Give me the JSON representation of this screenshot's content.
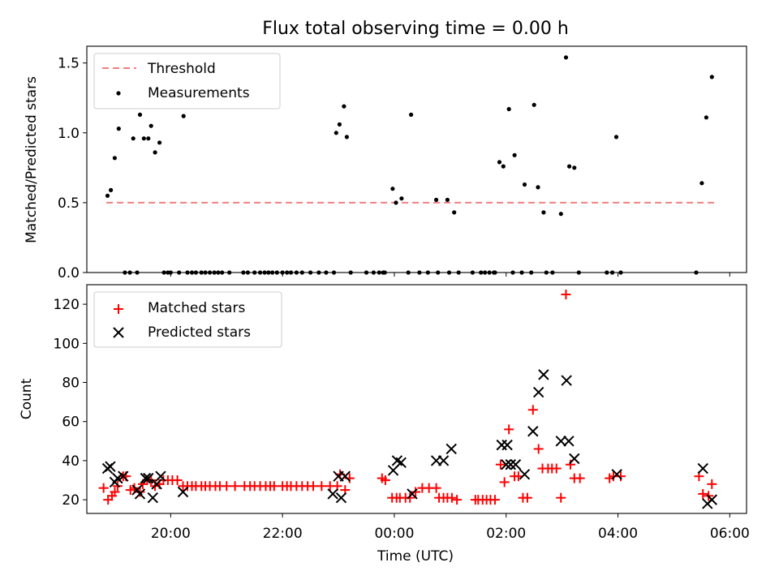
{
  "chart_data": [
    {
      "type": "scatter",
      "title": "Flux total observing time = 0.00 h",
      "xlabel": "",
      "ylabel": "Matched/Predicted stars",
      "xlim": [
        18.5,
        30.3
      ],
      "ylim": [
        0,
        1.62
      ],
      "yticks": [
        0,
        0.5,
        1.0,
        1.5
      ],
      "ytick_labels": [
        "0.0",
        "0.5",
        "1.0",
        "1.5"
      ],
      "legend": {
        "position": "top-left",
        "entries": [
          "Threshold",
          "Measurements"
        ]
      },
      "threshold": {
        "name": "Threshold",
        "value": 0.5,
        "x": [
          18.85,
          29.75
        ],
        "color": "#f08080"
      },
      "series": [
        {
          "name": "Measurements",
          "color": "#000000",
          "points": [
            [
              18.87,
              0.55
            ],
            [
              18.93,
              0.59
            ],
            [
              19.0,
              0.82
            ],
            [
              19.07,
              1.03
            ],
            [
              19.18,
              0.0
            ],
            [
              19.27,
              0.0
            ],
            [
              19.33,
              0.96
            ],
            [
              19.4,
              0.0
            ],
            [
              19.45,
              1.13
            ],
            [
              19.52,
              0.96
            ],
            [
              19.6,
              0.96
            ],
            [
              19.65,
              1.05
            ],
            [
              19.72,
              0.86
            ],
            [
              19.8,
              0.93
            ],
            [
              19.88,
              0.0
            ],
            [
              19.95,
              0.0
            ],
            [
              20.0,
              0.0
            ],
            [
              20.15,
              0.0
            ],
            [
              20.23,
              1.12
            ],
            [
              20.3,
              0.0
            ],
            [
              20.38,
              0.0
            ],
            [
              20.45,
              0.0
            ],
            [
              20.55,
              0.0
            ],
            [
              20.62,
              0.0
            ],
            [
              20.7,
              0.0
            ],
            [
              20.78,
              0.0
            ],
            [
              20.85,
              0.0
            ],
            [
              20.92,
              0.0
            ],
            [
              21.05,
              0.0
            ],
            [
              21.3,
              0.0
            ],
            [
              21.38,
              0.0
            ],
            [
              21.5,
              0.0
            ],
            [
              21.6,
              0.0
            ],
            [
              21.68,
              0.0
            ],
            [
              21.75,
              0.0
            ],
            [
              21.82,
              0.0
            ],
            [
              21.9,
              0.0
            ],
            [
              22.0,
              0.0
            ],
            [
              22.08,
              0.0
            ],
            [
              22.15,
              0.0
            ],
            [
              22.25,
              0.0
            ],
            [
              22.35,
              0.0
            ],
            [
              22.5,
              0.0
            ],
            [
              22.65,
              0.0
            ],
            [
              22.78,
              0.0
            ],
            [
              22.92,
              0.0
            ],
            [
              22.96,
              1.0
            ],
            [
              23.02,
              1.06
            ],
            [
              23.1,
              1.19
            ],
            [
              23.15,
              0.97
            ],
            [
              23.22,
              0.0
            ],
            [
              23.5,
              0.0
            ],
            [
              23.63,
              0.0
            ],
            [
              23.73,
              0.0
            ],
            [
              23.8,
              0.0
            ],
            [
              23.83,
              0.0
            ],
            [
              23.97,
              0.6
            ],
            [
              24.03,
              0.5
            ],
            [
              24.13,
              0.53
            ],
            [
              24.25,
              0.0
            ],
            [
              24.3,
              1.13
            ],
            [
              24.45,
              0.0
            ],
            [
              24.6,
              0.0
            ],
            [
              24.75,
              0.52
            ],
            [
              24.78,
              0.0
            ],
            [
              24.95,
              0.52
            ],
            [
              24.98,
              0.0
            ],
            [
              25.07,
              0.43
            ],
            [
              25.15,
              0.0
            ],
            [
              25.4,
              0.0
            ],
            [
              25.55,
              0.0
            ],
            [
              25.62,
              0.0
            ],
            [
              25.7,
              0.0
            ],
            [
              25.78,
              0.0
            ],
            [
              25.8,
              0.0
            ],
            [
              25.88,
              0.79
            ],
            [
              25.95,
              0.76
            ],
            [
              26.05,
              1.17
            ],
            [
              26.12,
              0.0
            ],
            [
              26.15,
              0.84
            ],
            [
              26.28,
              0.0
            ],
            [
              26.33,
              0.63
            ],
            [
              26.45,
              0.0
            ],
            [
              26.5,
              1.2
            ],
            [
              26.57,
              0.61
            ],
            [
              26.67,
              0.43
            ],
            [
              26.72,
              0.0
            ],
            [
              26.83,
              0.0
            ],
            [
              26.98,
              0.42
            ],
            [
              27.07,
              1.54
            ],
            [
              27.13,
              0.76
            ],
            [
              27.22,
              0.75
            ],
            [
              27.3,
              0.0
            ],
            [
              27.8,
              0.0
            ],
            [
              27.9,
              0.0
            ],
            [
              27.97,
              0.97
            ],
            [
              28.05,
              0.0
            ],
            [
              29.4,
              0.0
            ],
            [
              29.5,
              0.64
            ],
            [
              29.58,
              1.11
            ],
            [
              29.68,
              1.4
            ]
          ]
        }
      ]
    },
    {
      "type": "scatter",
      "title": "",
      "xlabel": "Time (UTC)",
      "ylabel": "Count",
      "xlim": [
        18.5,
        30.3
      ],
      "ylim": [
        13,
        130
      ],
      "yticks": [
        20,
        40,
        60,
        80,
        100,
        120
      ],
      "ytick_labels": [
        "20",
        "40",
        "60",
        "80",
        "100",
        "120"
      ],
      "xticks": [
        20,
        22,
        24,
        26,
        28,
        30
      ],
      "xtick_labels": [
        "20:00",
        "22:00",
        "00:00",
        "02:00",
        "04:00",
        "06:00"
      ],
      "legend": {
        "position": "top-left",
        "entries": [
          "Matched stars",
          "Predicted stars"
        ]
      },
      "series": [
        {
          "name": "Matched stars",
          "marker": "plus",
          "color": "#ff0000",
          "points": [
            [
              18.8,
              26
            ],
            [
              18.88,
              20
            ],
            [
              18.95,
              22
            ],
            [
              19.0,
              24
            ],
            [
              19.05,
              27
            ],
            [
              19.15,
              32
            ],
            [
              19.2,
              32
            ],
            [
              19.28,
              25
            ],
            [
              19.35,
              26
            ],
            [
              19.45,
              24
            ],
            [
              19.5,
              28
            ],
            [
              19.58,
              30
            ],
            [
              19.65,
              30
            ],
            [
              19.72,
              27
            ],
            [
              19.8,
              28
            ],
            [
              19.87,
              30
            ],
            [
              19.95,
              30
            ],
            [
              20.03,
              30
            ],
            [
              20.12,
              30
            ],
            [
              20.22,
              27
            ],
            [
              20.3,
              27
            ],
            [
              20.38,
              27
            ],
            [
              20.45,
              27
            ],
            [
              20.55,
              27
            ],
            [
              20.62,
              27
            ],
            [
              20.7,
              27
            ],
            [
              20.8,
              27
            ],
            [
              20.88,
              27
            ],
            [
              21.0,
              27
            ],
            [
              21.15,
              27
            ],
            [
              21.32,
              27
            ],
            [
              21.42,
              27
            ],
            [
              21.5,
              27
            ],
            [
              21.6,
              27
            ],
            [
              21.7,
              27
            ],
            [
              21.78,
              27
            ],
            [
              21.85,
              27
            ],
            [
              22.0,
              27
            ],
            [
              22.08,
              27
            ],
            [
              22.15,
              27
            ],
            [
              22.25,
              27
            ],
            [
              22.35,
              27
            ],
            [
              22.45,
              27
            ],
            [
              22.55,
              27
            ],
            [
              22.7,
              27
            ],
            [
              22.85,
              27
            ],
            [
              22.98,
              27
            ],
            [
              23.03,
              33
            ],
            [
              23.12,
              25
            ],
            [
              23.2,
              31
            ],
            [
              23.78,
              31
            ],
            [
              23.84,
              30
            ],
            [
              23.96,
              21
            ],
            [
              24.04,
              21
            ],
            [
              24.1,
              21
            ],
            [
              24.2,
              21
            ],
            [
              24.28,
              21
            ],
            [
              24.38,
              24
            ],
            [
              24.5,
              26
            ],
            [
              24.62,
              26
            ],
            [
              24.75,
              26
            ],
            [
              24.8,
              21
            ],
            [
              24.88,
              21
            ],
            [
              24.95,
              21
            ],
            [
              25.03,
              21
            ],
            [
              25.12,
              20
            ],
            [
              25.45,
              20
            ],
            [
              25.5,
              20
            ],
            [
              25.58,
              20
            ],
            [
              25.65,
              20
            ],
            [
              25.72,
              20
            ],
            [
              25.8,
              20
            ],
            [
              25.9,
              38
            ],
            [
              25.97,
              29
            ],
            [
              26.05,
              56
            ],
            [
              26.15,
              32
            ],
            [
              26.22,
              32
            ],
            [
              26.3,
              21
            ],
            [
              26.38,
              21
            ],
            [
              26.48,
              66
            ],
            [
              26.58,
              46
            ],
            [
              26.65,
              36
            ],
            [
              26.75,
              36
            ],
            [
              26.82,
              36
            ],
            [
              26.9,
              36
            ],
            [
              26.98,
              21
            ],
            [
              27.07,
              125
            ],
            [
              27.15,
              38
            ],
            [
              27.22,
              31
            ],
            [
              27.32,
              31
            ],
            [
              27.85,
              31
            ],
            [
              27.92,
              32
            ],
            [
              28.05,
              32
            ],
            [
              29.45,
              32
            ],
            [
              29.52,
              23
            ],
            [
              29.62,
              22
            ],
            [
              29.68,
              28
            ]
          ]
        },
        {
          "name": "Predicted stars",
          "marker": "x",
          "color": "#000000",
          "points": [
            [
              18.87,
              36
            ],
            [
              18.92,
              37
            ],
            [
              19.0,
              29
            ],
            [
              19.05,
              31
            ],
            [
              19.15,
              32
            ],
            [
              19.4,
              25
            ],
            [
              19.45,
              23
            ],
            [
              19.55,
              31
            ],
            [
              19.6,
              31
            ],
            [
              19.68,
              21
            ],
            [
              19.75,
              28
            ],
            [
              19.82,
              32
            ],
            [
              20.22,
              24
            ],
            [
              22.9,
              23
            ],
            [
              23.0,
              32
            ],
            [
              23.05,
              21
            ],
            [
              23.12,
              32
            ],
            [
              23.98,
              35
            ],
            [
              24.05,
              40
            ],
            [
              24.12,
              39
            ],
            [
              24.32,
              23
            ],
            [
              24.75,
              40
            ],
            [
              24.88,
              40
            ],
            [
              25.02,
              46
            ],
            [
              25.92,
              48
            ],
            [
              26.02,
              48
            ],
            [
              26.0,
              38
            ],
            [
              26.08,
              38
            ],
            [
              26.17,
              38
            ],
            [
              26.33,
              33
            ],
            [
              26.48,
              55
            ],
            [
              26.58,
              75
            ],
            [
              26.67,
              84
            ],
            [
              26.98,
              50
            ],
            [
              27.08,
              81
            ],
            [
              27.12,
              50
            ],
            [
              27.22,
              41
            ],
            [
              27.98,
              33
            ],
            [
              29.52,
              36
            ],
            [
              29.6,
              18
            ],
            [
              29.68,
              20
            ]
          ]
        }
      ]
    }
  ]
}
